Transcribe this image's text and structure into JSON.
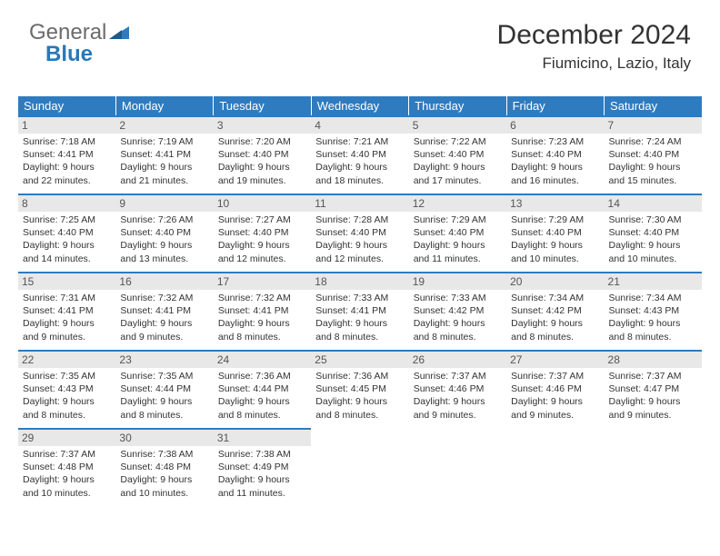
{
  "logo": {
    "part1": "General",
    "part2": "Blue"
  },
  "title": "December 2024",
  "location": "Fiumicino, Lazio, Italy",
  "colors": {
    "header_bg": "#2f7bbf",
    "header_text": "#ffffff",
    "daynum_bg": "#e8e8e8",
    "border_top": "#2f7bbf",
    "logo_gray": "#6b6b6b",
    "logo_blue": "#2878b8"
  },
  "day_headers": [
    "Sunday",
    "Monday",
    "Tuesday",
    "Wednesday",
    "Thursday",
    "Friday",
    "Saturday"
  ],
  "weeks": [
    [
      {
        "n": "1",
        "sr": "Sunrise: 7:18 AM",
        "ss": "Sunset: 4:41 PM",
        "d1": "Daylight: 9 hours",
        "d2": "and 22 minutes."
      },
      {
        "n": "2",
        "sr": "Sunrise: 7:19 AM",
        "ss": "Sunset: 4:41 PM",
        "d1": "Daylight: 9 hours",
        "d2": "and 21 minutes."
      },
      {
        "n": "3",
        "sr": "Sunrise: 7:20 AM",
        "ss": "Sunset: 4:40 PM",
        "d1": "Daylight: 9 hours",
        "d2": "and 19 minutes."
      },
      {
        "n": "4",
        "sr": "Sunrise: 7:21 AM",
        "ss": "Sunset: 4:40 PM",
        "d1": "Daylight: 9 hours",
        "d2": "and 18 minutes."
      },
      {
        "n": "5",
        "sr": "Sunrise: 7:22 AM",
        "ss": "Sunset: 4:40 PM",
        "d1": "Daylight: 9 hours",
        "d2": "and 17 minutes."
      },
      {
        "n": "6",
        "sr": "Sunrise: 7:23 AM",
        "ss": "Sunset: 4:40 PM",
        "d1": "Daylight: 9 hours",
        "d2": "and 16 minutes."
      },
      {
        "n": "7",
        "sr": "Sunrise: 7:24 AM",
        "ss": "Sunset: 4:40 PM",
        "d1": "Daylight: 9 hours",
        "d2": "and 15 minutes."
      }
    ],
    [
      {
        "n": "8",
        "sr": "Sunrise: 7:25 AM",
        "ss": "Sunset: 4:40 PM",
        "d1": "Daylight: 9 hours",
        "d2": "and 14 minutes."
      },
      {
        "n": "9",
        "sr": "Sunrise: 7:26 AM",
        "ss": "Sunset: 4:40 PM",
        "d1": "Daylight: 9 hours",
        "d2": "and 13 minutes."
      },
      {
        "n": "10",
        "sr": "Sunrise: 7:27 AM",
        "ss": "Sunset: 4:40 PM",
        "d1": "Daylight: 9 hours",
        "d2": "and 12 minutes."
      },
      {
        "n": "11",
        "sr": "Sunrise: 7:28 AM",
        "ss": "Sunset: 4:40 PM",
        "d1": "Daylight: 9 hours",
        "d2": "and 12 minutes."
      },
      {
        "n": "12",
        "sr": "Sunrise: 7:29 AM",
        "ss": "Sunset: 4:40 PM",
        "d1": "Daylight: 9 hours",
        "d2": "and 11 minutes."
      },
      {
        "n": "13",
        "sr": "Sunrise: 7:29 AM",
        "ss": "Sunset: 4:40 PM",
        "d1": "Daylight: 9 hours",
        "d2": "and 10 minutes."
      },
      {
        "n": "14",
        "sr": "Sunrise: 7:30 AM",
        "ss": "Sunset: 4:40 PM",
        "d1": "Daylight: 9 hours",
        "d2": "and 10 minutes."
      }
    ],
    [
      {
        "n": "15",
        "sr": "Sunrise: 7:31 AM",
        "ss": "Sunset: 4:41 PM",
        "d1": "Daylight: 9 hours",
        "d2": "and 9 minutes."
      },
      {
        "n": "16",
        "sr": "Sunrise: 7:32 AM",
        "ss": "Sunset: 4:41 PM",
        "d1": "Daylight: 9 hours",
        "d2": "and 9 minutes."
      },
      {
        "n": "17",
        "sr": "Sunrise: 7:32 AM",
        "ss": "Sunset: 4:41 PM",
        "d1": "Daylight: 9 hours",
        "d2": "and 8 minutes."
      },
      {
        "n": "18",
        "sr": "Sunrise: 7:33 AM",
        "ss": "Sunset: 4:41 PM",
        "d1": "Daylight: 9 hours",
        "d2": "and 8 minutes."
      },
      {
        "n": "19",
        "sr": "Sunrise: 7:33 AM",
        "ss": "Sunset: 4:42 PM",
        "d1": "Daylight: 9 hours",
        "d2": "and 8 minutes."
      },
      {
        "n": "20",
        "sr": "Sunrise: 7:34 AM",
        "ss": "Sunset: 4:42 PM",
        "d1": "Daylight: 9 hours",
        "d2": "and 8 minutes."
      },
      {
        "n": "21",
        "sr": "Sunrise: 7:34 AM",
        "ss": "Sunset: 4:43 PM",
        "d1": "Daylight: 9 hours",
        "d2": "and 8 minutes."
      }
    ],
    [
      {
        "n": "22",
        "sr": "Sunrise: 7:35 AM",
        "ss": "Sunset: 4:43 PM",
        "d1": "Daylight: 9 hours",
        "d2": "and 8 minutes."
      },
      {
        "n": "23",
        "sr": "Sunrise: 7:35 AM",
        "ss": "Sunset: 4:44 PM",
        "d1": "Daylight: 9 hours",
        "d2": "and 8 minutes."
      },
      {
        "n": "24",
        "sr": "Sunrise: 7:36 AM",
        "ss": "Sunset: 4:44 PM",
        "d1": "Daylight: 9 hours",
        "d2": "and 8 minutes."
      },
      {
        "n": "25",
        "sr": "Sunrise: 7:36 AM",
        "ss": "Sunset: 4:45 PM",
        "d1": "Daylight: 9 hours",
        "d2": "and 8 minutes."
      },
      {
        "n": "26",
        "sr": "Sunrise: 7:37 AM",
        "ss": "Sunset: 4:46 PM",
        "d1": "Daylight: 9 hours",
        "d2": "and 9 minutes."
      },
      {
        "n": "27",
        "sr": "Sunrise: 7:37 AM",
        "ss": "Sunset: 4:46 PM",
        "d1": "Daylight: 9 hours",
        "d2": "and 9 minutes."
      },
      {
        "n": "28",
        "sr": "Sunrise: 7:37 AM",
        "ss": "Sunset: 4:47 PM",
        "d1": "Daylight: 9 hours",
        "d2": "and 9 minutes."
      }
    ],
    [
      {
        "n": "29",
        "sr": "Sunrise: 7:37 AM",
        "ss": "Sunset: 4:48 PM",
        "d1": "Daylight: 9 hours",
        "d2": "and 10 minutes."
      },
      {
        "n": "30",
        "sr": "Sunrise: 7:38 AM",
        "ss": "Sunset: 4:48 PM",
        "d1": "Daylight: 9 hours",
        "d2": "and 10 minutes."
      },
      {
        "n": "31",
        "sr": "Sunrise: 7:38 AM",
        "ss": "Sunset: 4:49 PM",
        "d1": "Daylight: 9 hours",
        "d2": "and 11 minutes."
      },
      null,
      null,
      null,
      null
    ]
  ]
}
